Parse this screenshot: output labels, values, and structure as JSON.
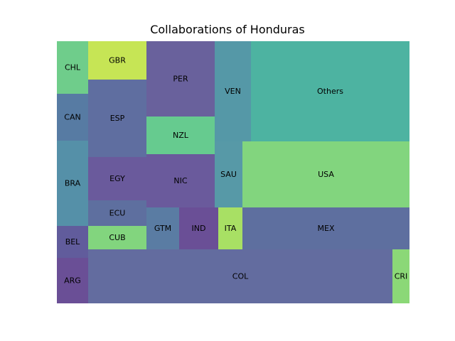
{
  "chart_data": {
    "type": "treemap",
    "title": "Collaborations of Honduras",
    "cells": [
      {
        "label": "ARG",
        "color": "#6a4f96"
      },
      {
        "label": "BEL",
        "color": "#615c9c"
      },
      {
        "label": "BRA",
        "color": "#5590a8"
      },
      {
        "label": "CAN",
        "color": "#577ba3"
      },
      {
        "label": "CHL",
        "color": "#6fcd8b"
      },
      {
        "label": "GBR",
        "color": "#c6e555"
      },
      {
        "label": "ESP",
        "color": "#5f6ea0"
      },
      {
        "label": "EGY",
        "color": "#6a5a9c"
      },
      {
        "label": "ECU",
        "color": "#5e6f9f"
      },
      {
        "label": "CUB",
        "color": "#82d57e"
      },
      {
        "label": "PER",
        "color": "#69619c"
      },
      {
        "label": "NZL",
        "color": "#66cb8f"
      },
      {
        "label": "NIC",
        "color": "#6a5a9c"
      },
      {
        "label": "GTM",
        "color": "#5a7ca3"
      },
      {
        "label": "IND",
        "color": "#6a4f96"
      },
      {
        "label": "VEN",
        "color": "#5598a7"
      },
      {
        "label": "SAU",
        "color": "#5799a7"
      },
      {
        "label": "ITA",
        "color": "#a8e064"
      },
      {
        "label": "Others",
        "color": "#4db3a1"
      },
      {
        "label": "USA",
        "color": "#82d57e"
      },
      {
        "label": "MEX",
        "color": "#5e6f9f"
      },
      {
        "label": "COL",
        "color": "#636c9f"
      },
      {
        "label": "CRI",
        "color": "#8bd877"
      }
    ]
  }
}
